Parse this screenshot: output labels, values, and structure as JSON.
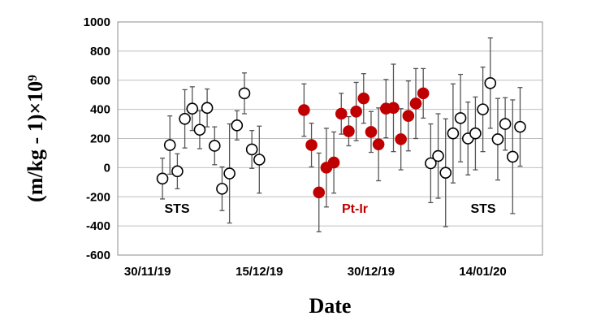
{
  "chart_data": {
    "type": "scatter",
    "xlabel": "Date",
    "ylabel": "(m/kg - 1)×10⁹",
    "ylim": [
      -600,
      1000
    ],
    "yticks": [
      -600,
      -400,
      -200,
      0,
      200,
      400,
      600,
      800,
      1000
    ],
    "xlim": [
      "2019-11-26",
      "2020-01-22"
    ],
    "xticks": [
      {
        "date": "2019-11-30",
        "label": "30/11/19"
      },
      {
        "date": "2019-12-15",
        "label": "15/12/19"
      },
      {
        "date": "2019-12-30",
        "label": "30/12/19"
      },
      {
        "date": "2020-01-14",
        "label": "14/01/20"
      }
    ],
    "grid": "horizontal",
    "annotations": [
      {
        "text": "STS",
        "color": "#000000"
      },
      {
        "text": "Pt-Ir",
        "color": "#c00000"
      },
      {
        "text": "STS",
        "color": "#000000"
      }
    ],
    "series": [
      {
        "marker": "open-circle",
        "color": "#000000",
        "points": [
          {
            "x": "2019-12-02",
            "y": -75,
            "err": 140
          },
          {
            "x": "2019-12-03",
            "y": 155,
            "err": 200
          },
          {
            "x": "2019-12-04",
            "y": -25,
            "err": 120
          },
          {
            "x": "2019-12-05",
            "y": 335,
            "err": 200
          },
          {
            "x": "2019-12-06",
            "y": 405,
            "err": 150
          },
          {
            "x": "2019-12-07",
            "y": 260,
            "err": 130
          },
          {
            "x": "2019-12-08",
            "y": 410,
            "err": 130
          },
          {
            "x": "2019-12-09",
            "y": 150,
            "err": 130
          },
          {
            "x": "2019-12-10",
            "y": -145,
            "err": 150
          },
          {
            "x": "2019-12-11",
            "y": -40,
            "err": 340
          },
          {
            "x": "2019-12-12",
            "y": 290,
            "err": 100
          },
          {
            "x": "2019-12-13",
            "y": 510,
            "err": 140
          },
          {
            "x": "2019-12-14",
            "y": 125,
            "err": 130
          },
          {
            "x": "2019-12-15",
            "y": 55,
            "err": 230
          }
        ]
      },
      {
        "marker": "filled-circle",
        "color": "#c00000",
        "points": [
          {
            "x": "2019-12-21",
            "y": 395,
            "err": 180
          },
          {
            "x": "2019-12-22",
            "y": 155,
            "err": 150
          },
          {
            "x": "2019-12-23",
            "y": -170,
            "err": 270
          },
          {
            "x": "2019-12-24",
            "y": 0,
            "err": 270
          },
          {
            "x": "2019-12-25",
            "y": 35,
            "err": 210
          },
          {
            "x": "2019-12-26",
            "y": 370,
            "err": 140
          },
          {
            "x": "2019-12-27",
            "y": 250,
            "err": 100
          },
          {
            "x": "2019-12-28",
            "y": 385,
            "err": 200
          },
          {
            "x": "2019-12-29",
            "y": 475,
            "err": 170
          },
          {
            "x": "2019-12-30",
            "y": 245,
            "err": 140
          },
          {
            "x": "2019-12-31",
            "y": 160,
            "err": 250
          },
          {
            "x": "2020-01-01",
            "y": 405,
            "err": 200
          },
          {
            "x": "2020-01-02",
            "y": 410,
            "err": 300
          },
          {
            "x": "2020-01-03",
            "y": 195,
            "err": 210
          },
          {
            "x": "2020-01-04",
            "y": 355,
            "err": 240
          },
          {
            "x": "2020-01-05",
            "y": 440,
            "err": 240
          },
          {
            "x": "2020-01-06",
            "y": 510,
            "err": 170
          }
        ]
      },
      {
        "marker": "open-circle",
        "color": "#000000",
        "points": [
          {
            "x": "2020-01-07",
            "y": 30,
            "err": 270
          },
          {
            "x": "2020-01-08",
            "y": 80,
            "err": 290
          },
          {
            "x": "2020-01-09",
            "y": -35,
            "err": 370
          },
          {
            "x": "2020-01-10",
            "y": 235,
            "err": 340
          },
          {
            "x": "2020-01-11",
            "y": 340,
            "err": 300
          },
          {
            "x": "2020-01-12",
            "y": 200,
            "err": 250
          },
          {
            "x": "2020-01-13",
            "y": 235,
            "err": 250
          },
          {
            "x": "2020-01-14",
            "y": 400,
            "err": 290
          },
          {
            "x": "2020-01-15",
            "y": 580,
            "err": 310
          },
          {
            "x": "2020-01-16",
            "y": 195,
            "err": 280
          },
          {
            "x": "2020-01-17",
            "y": 300,
            "err": 180
          },
          {
            "x": "2020-01-18",
            "y": 75,
            "err": 390
          },
          {
            "x": "2020-01-19",
            "y": 280,
            "err": 270
          }
        ]
      }
    ]
  }
}
